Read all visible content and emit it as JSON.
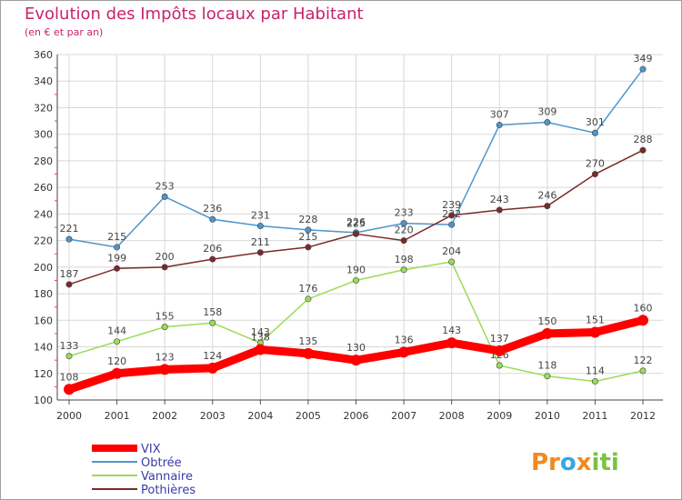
{
  "title": "Evolution des Impôts locaux par Habitant",
  "subtitle": "(en € et par an)",
  "brand": {
    "text_parts": [
      "Pr",
      "o",
      "x",
      "iti"
    ],
    "colors": [
      "#f08a1e",
      "#36a7e0",
      "#f08a1e",
      "#7cc242"
    ]
  },
  "chart_data": {
    "type": "line",
    "x": [
      "2000",
      "2001",
      "2002",
      "2003",
      "2004",
      "2005",
      "2006",
      "2007",
      "2008",
      "2009",
      "2010",
      "2011",
      "2012"
    ],
    "ylim": [
      100,
      360
    ],
    "yticks": [
      100,
      120,
      140,
      160,
      180,
      200,
      220,
      240,
      260,
      280,
      300,
      320,
      340,
      360
    ],
    "grid": true,
    "legend_position": "bottom-left",
    "series": [
      {
        "name": "VIX",
        "color": "#ff0000",
        "values": [
          108,
          120,
          123,
          124,
          138,
          135,
          130,
          136,
          143,
          137,
          150,
          151,
          160
        ]
      },
      {
        "name": "Obtrée",
        "color": "#4d95cc",
        "values": [
          221,
          215,
          253,
          236,
          231,
          228,
          226,
          233,
          232,
          307,
          309,
          301,
          349
        ]
      },
      {
        "name": "Vannaire",
        "color": "#99dd55",
        "values": [
          133,
          144,
          155,
          158,
          143,
          176,
          190,
          198,
          204,
          126,
          118,
          114,
          122
        ]
      },
      {
        "name": "Pothières",
        "color": "#7a2a2a",
        "values": [
          187,
          199,
          200,
          206,
          211,
          215,
          225,
          220,
          239,
          243,
          246,
          270,
          288
        ]
      }
    ]
  }
}
